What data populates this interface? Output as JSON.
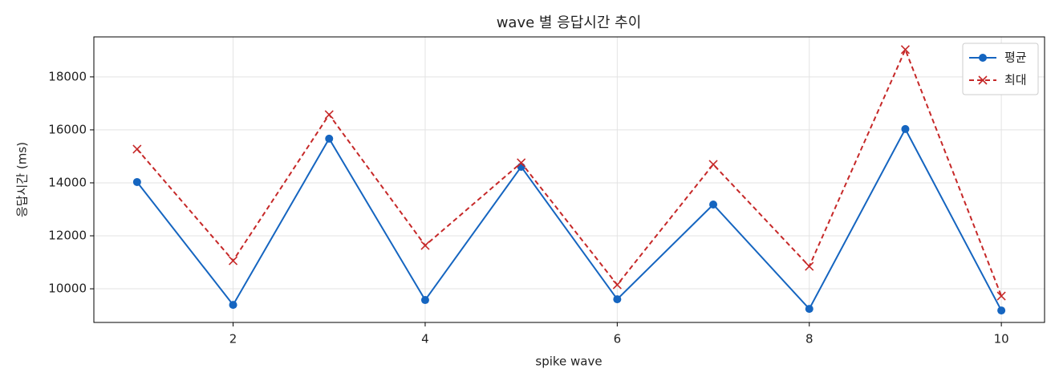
{
  "chart_data": {
    "type": "line",
    "title": "wave 별 응답시간 추이",
    "x_label": "spike wave",
    "y_label": "응답시간 (ms)",
    "x": [
      1,
      2,
      3,
      4,
      5,
      6,
      7,
      8,
      9,
      10
    ],
    "series": [
      {
        "name": "평균",
        "color": "#1565c0",
        "marker": "o",
        "linestyle": "solid",
        "values": [
          14030,
          9394,
          15667,
          9576,
          14606,
          9606,
          13182,
          9242,
          16030,
          9182
        ]
      },
      {
        "name": "최대",
        "color": "#c62828",
        "marker": "x",
        "linestyle": "dashed",
        "values": [
          15273,
          11061,
          16576,
          11636,
          14758,
          10152,
          14697,
          10848,
          19030,
          9727
        ]
      }
    ],
    "xlim": [
      0.55,
      10.45
    ],
    "xticks": [
      2,
      4,
      6,
      8,
      10
    ],
    "ylim": [
      8730,
      19510
    ],
    "yticks": [
      10000,
      12000,
      14000,
      16000,
      18000
    ],
    "grid": true,
    "legend": "upper right"
  }
}
